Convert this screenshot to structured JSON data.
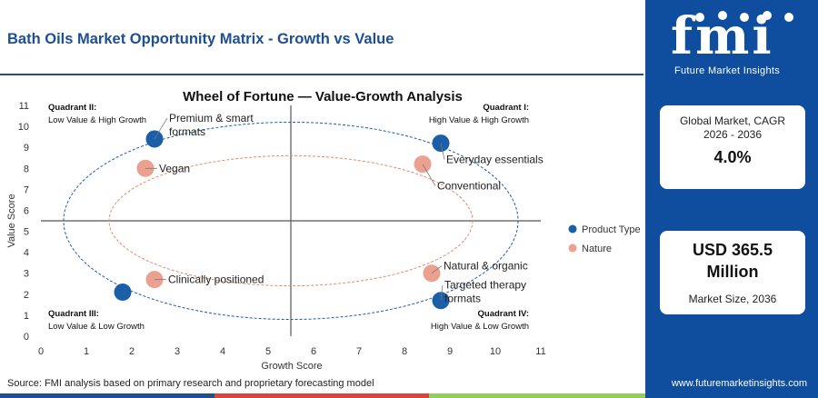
{
  "header": {
    "title": "Bath Oils Market Opportunity Matrix - Growth vs Value"
  },
  "brand": {
    "logo_text": "fmi",
    "logo_subtitle": "Future Market Insights",
    "url": "www.futuremarketinsights.com",
    "sidebar_color": "#0f4e9e"
  },
  "cards": {
    "cagr_label": "Global Market, CAGR 2026 - 2036",
    "cagr_value": "4.0%",
    "size_value": "USD 365.5 Million",
    "size_label": "Market Size, 2036"
  },
  "source": "Source: FMI analysis based on primary research and proprietary forecasting model",
  "chart_data": {
    "type": "scatter",
    "title": "Wheel of Fortune — Value-Growth Analysis",
    "xlabel": "Growth Score",
    "ylabel": "Value Score",
    "xlim": [
      0,
      11
    ],
    "ylim": [
      0,
      11
    ],
    "xticks": [
      0,
      1,
      2,
      3,
      4,
      5,
      6,
      7,
      8,
      9,
      10,
      11
    ],
    "yticks": [
      0,
      1,
      2,
      3,
      4,
      5,
      6,
      7,
      8,
      9,
      10,
      11
    ],
    "grid": false,
    "divider": {
      "x": 5.5,
      "y": 5.5
    },
    "legend_position": "right",
    "quadrants": [
      {
        "title": "Quadrant II:",
        "subtitle": "Low Value & High Growth",
        "position": "top-left"
      },
      {
        "title": "Quadrant I:",
        "subtitle": "High Value & High Growth",
        "position": "top-right"
      },
      {
        "title": "Quadrant III:",
        "subtitle": "Low Value & Low Growth",
        "position": "bottom-left"
      },
      {
        "title": "Quadrant IV:",
        "subtitle": "High Value & Low Growth",
        "position": "bottom-right"
      }
    ],
    "series": [
      {
        "name": "Product Type",
        "color": "#1a5fa8",
        "points": [
          {
            "label": "Premium & smart formats",
            "x": 2.5,
            "y": 9.4
          },
          {
            "label": "Everyday essentials",
            "x": 8.8,
            "y": 9.2
          },
          {
            "label": "Clinically positioned",
            "x": 1.8,
            "y": 2.1
          },
          {
            "label": "Targeted therapy formats",
            "x": 8.8,
            "y": 1.7
          }
        ]
      },
      {
        "name": "Nature",
        "color": "#eba090",
        "points": [
          {
            "label": "Vegan",
            "x": 2.3,
            "y": 8.0
          },
          {
            "label": "Conventional",
            "x": 8.4,
            "y": 8.2
          },
          {
            "label": "Clinically positioned",
            "x": 2.5,
            "y": 2.7
          },
          {
            "label": "Natural & organic",
            "x": 8.6,
            "y": 3.0
          }
        ]
      }
    ]
  }
}
